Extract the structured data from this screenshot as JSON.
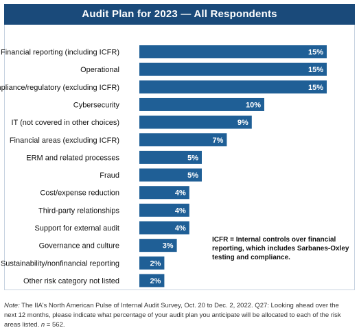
{
  "chart_data": {
    "type": "bar",
    "orientation": "horizontal",
    "title": "Audit Plan for 2023 — All Respondents",
    "categories": [
      "Financial reporting (including ICFR)",
      "Operational",
      "Compliance/regulatory (excluding ICFR)",
      "Cybersecurity",
      "IT (not covered in other choices)",
      "Financial areas (excluding ICFR)",
      "ERM and related processes",
      "Fraud",
      "Cost/expense reduction",
      "Third-party relationships",
      "Support for external audit",
      "Governance and culture",
      "Sustainability/nonfinancial reporting",
      "Other risk category not listed"
    ],
    "values": [
      15,
      15,
      15,
      10,
      9,
      7,
      5,
      5,
      4,
      4,
      4,
      3,
      2,
      2
    ],
    "value_labels": [
      "15%",
      "15%",
      "15%",
      "10%",
      "9%",
      "7%",
      "5%",
      "5%",
      "4%",
      "4%",
      "4%",
      "3%",
      "2%",
      "2%"
    ],
    "unit": "%",
    "xlim": [
      0,
      15
    ],
    "grid": false,
    "bar_color": "#1f5f96",
    "title_bg_color": "#1a4a7a"
  },
  "callout": "ICFR = Internal controls over financial reporting, which includes Sarbanes-Oxley testing and compliance.",
  "note": {
    "prefix": "Note:",
    "text": " The IIA's North American Pulse of Internal Audit Survey, Oct. 20 to Dec. 2, 2022. Q27: Looking ahead over the next 12 months, please indicate what percentage of your audit plan you anticipate will be allocated to each of the risk areas listed. ",
    "n_prefix": "n",
    "n_text": " = 562."
  }
}
